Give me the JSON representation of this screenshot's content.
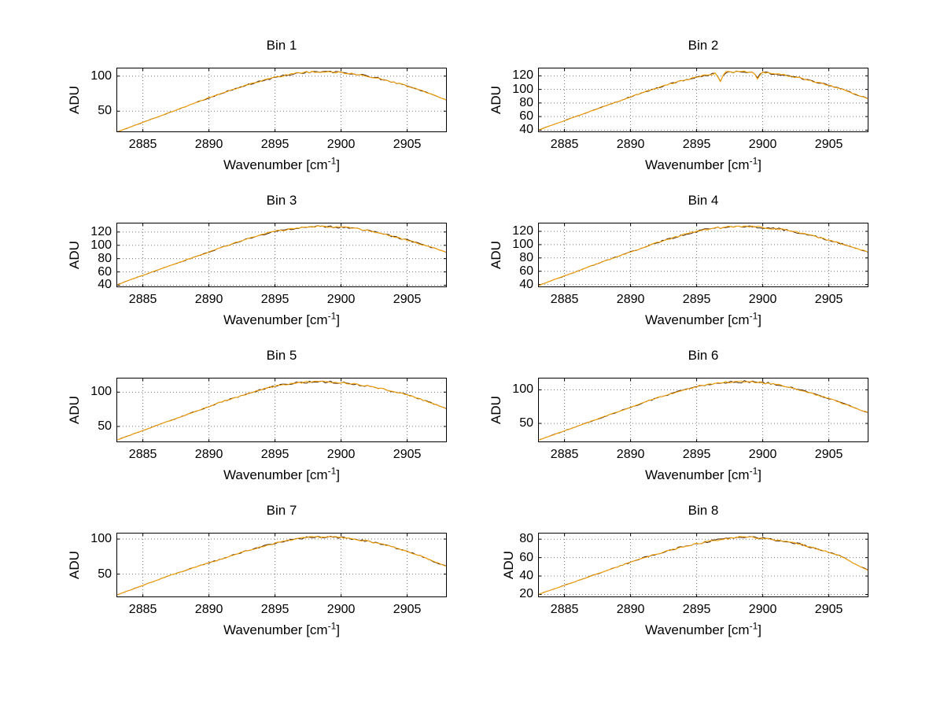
{
  "figure": {
    "background": "#FFFFFF",
    "colors": {
      "line": "#FFA500",
      "underlay": "#4d2600",
      "grid": "#777777",
      "frame": "#000000",
      "text": "#000000"
    }
  },
  "axis_labels": {
    "ylabel": "ADU",
    "xlabel_prefix": "Wavenumber [cm",
    "xlabel_sup": "-1",
    "xlabel_suffix": "]"
  },
  "chart_data": [
    {
      "type": "line",
      "title": "Bin 1",
      "xlabel": "Wavenumber [cm^-1]",
      "ylabel": "ADU",
      "xlim": [
        2883,
        2908
      ],
      "ylim": [
        20,
        112
      ],
      "xticks": [
        2885,
        2890,
        2895,
        2900,
        2905
      ],
      "yticks": [
        50,
        100
      ],
      "x_start": 2883,
      "x_step": 1,
      "noise": 1.5,
      "seed": 1,
      "spikes": [],
      "series": [
        {
          "name": "spectrum",
          "values": [
            20,
            27,
            34,
            41,
            48,
            55,
            62,
            69,
            76,
            82,
            88,
            93,
            98,
            102,
            105,
            106,
            106,
            105,
            103,
            100,
            96,
            91,
            86,
            80,
            73,
            66
          ]
        }
      ]
    },
    {
      "type": "line",
      "title": "Bin 2",
      "xlabel": "Wavenumber [cm^-1]",
      "ylabel": "ADU",
      "xlim": [
        2883,
        2908
      ],
      "ylim": [
        37,
        132
      ],
      "xticks": [
        2885,
        2890,
        2895,
        2900,
        2905
      ],
      "yticks": [
        40,
        60,
        80,
        100,
        120
      ],
      "x_start": 2883,
      "x_step": 1,
      "noise": 1.5,
      "seed": 2,
      "spikes": [
        {
          "x": 2896.9,
          "depth": 13
        },
        {
          "x": 2899.7,
          "depth": 9
        }
      ],
      "series": [
        {
          "name": "spectrum",
          "values": [
            40,
            47,
            54,
            61,
            68,
            75,
            82,
            89,
            96,
            102,
            108,
            113,
            118,
            122,
            125,
            126,
            126,
            125,
            123,
            120,
            116,
            111,
            106,
            100,
            93,
            86
          ]
        }
      ]
    },
    {
      "type": "line",
      "title": "Bin 3",
      "xlabel": "Wavenumber [cm^-1]",
      "ylabel": "ADU",
      "xlim": [
        2883,
        2908
      ],
      "ylim": [
        37,
        134
      ],
      "xticks": [
        2885,
        2890,
        2895,
        2900,
        2905
      ],
      "yticks": [
        40,
        60,
        80,
        100,
        120
      ],
      "x_start": 2883,
      "x_step": 1,
      "noise": 1.6,
      "seed": 3,
      "spikes": [],
      "series": [
        {
          "name": "spectrum",
          "values": [
            40,
            48,
            55,
            62,
            69,
            76,
            83,
            90,
            97,
            104,
            110,
            116,
            121,
            124,
            127,
            128,
            128,
            127,
            125,
            122,
            118,
            113,
            108,
            102,
            96,
            90
          ]
        }
      ]
    },
    {
      "type": "line",
      "title": "Bin 4",
      "xlabel": "Wavenumber [cm^-1]",
      "ylabel": "ADU",
      "xlim": [
        2883,
        2908
      ],
      "ylim": [
        36,
        133
      ],
      "xticks": [
        2885,
        2890,
        2895,
        2900,
        2905
      ],
      "yticks": [
        40,
        60,
        80,
        100,
        120
      ],
      "x_start": 2883,
      "x_step": 1,
      "noise": 1.6,
      "seed": 4,
      "spikes": [],
      "series": [
        {
          "name": "spectrum",
          "values": [
            38,
            46,
            53,
            60,
            68,
            75,
            82,
            89,
            96,
            103,
            109,
            115,
            120,
            124,
            126,
            127,
            127,
            126,
            124,
            121,
            117,
            112,
            107,
            101,
            95,
            89
          ]
        }
      ]
    },
    {
      "type": "line",
      "title": "Bin 5",
      "xlabel": "Wavenumber [cm^-1]",
      "ylabel": "ADU",
      "xlim": [
        2883,
        2908
      ],
      "ylim": [
        27,
        121
      ],
      "xticks": [
        2885,
        2890,
        2895,
        2900,
        2905
      ],
      "yticks": [
        50,
        100
      ],
      "x_start": 2883,
      "x_step": 1,
      "noise": 1.5,
      "seed": 5,
      "spikes": [],
      "series": [
        {
          "name": "spectrum",
          "values": [
            30,
            37,
            44,
            51,
            58,
            65,
            72,
            79,
            86,
            92,
            98,
            104,
            109,
            112,
            114,
            115,
            115,
            114,
            112,
            109,
            105,
            101,
            96,
            90,
            83,
            76
          ]
        }
      ]
    },
    {
      "type": "line",
      "title": "Bin 6",
      "xlabel": "Wavenumber [cm^-1]",
      "ylabel": "ADU",
      "xlim": [
        2883,
        2908
      ],
      "ylim": [
        22,
        118
      ],
      "xticks": [
        2885,
        2890,
        2895,
        2900,
        2905
      ],
      "yticks": [
        50,
        100
      ],
      "x_start": 2883,
      "x_step": 1,
      "noise": 1.7,
      "seed": 6,
      "spikes": [],
      "series": [
        {
          "name": "spectrum",
          "values": [
            25,
            32,
            39,
            46,
            53,
            60,
            67,
            74,
            81,
            88,
            94,
            100,
            105,
            109,
            111,
            112,
            112,
            111,
            108,
            104,
            99,
            93,
            87,
            80,
            73,
            66
          ]
        }
      ]
    },
    {
      "type": "line",
      "title": "Bin 7",
      "xlabel": "Wavenumber [cm^-1]",
      "ylabel": "ADU",
      "xlim": [
        2883,
        2908
      ],
      "ylim": [
        17,
        109
      ],
      "xticks": [
        2885,
        2890,
        2895,
        2900,
        2905
      ],
      "yticks": [
        50,
        100
      ],
      "x_start": 2883,
      "x_step": 1,
      "noise": 1.4,
      "seed": 7,
      "spikes": [],
      "series": [
        {
          "name": "spectrum",
          "values": [
            20,
            27,
            34,
            41,
            48,
            54,
            60,
            66,
            72,
            78,
            84,
            89,
            94,
            98,
            101,
            103,
            103,
            102,
            100,
            97,
            93,
            88,
            82,
            76,
            68,
            61
          ]
        }
      ]
    },
    {
      "type": "line",
      "title": "Bin 8",
      "xlabel": "Wavenumber [cm^-1]",
      "ylabel": "ADU",
      "xlim": [
        2883,
        2908
      ],
      "ylim": [
        17,
        87
      ],
      "xticks": [
        2885,
        2890,
        2895,
        2900,
        2905
      ],
      "yticks": [
        20,
        40,
        60,
        80
      ],
      "x_start": 2883,
      "x_step": 1,
      "noise": 1.2,
      "seed": 8,
      "spikes": [],
      "series": [
        {
          "name": "spectrum",
          "values": [
            20,
            25,
            30,
            35,
            40,
            45,
            50,
            55,
            60,
            64,
            68,
            72,
            75,
            78,
            80,
            82,
            82,
            81,
            79,
            77,
            74,
            70,
            66,
            61,
            53,
            46
          ]
        }
      ]
    }
  ]
}
